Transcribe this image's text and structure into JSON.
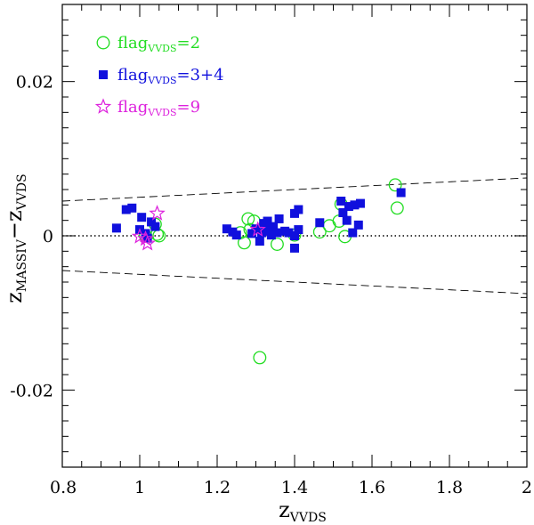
{
  "chart_data": {
    "type": "scatter",
    "title": "",
    "xlabel": {
      "base": "z",
      "sub": "VVDS"
    },
    "ylabel": {
      "base1": "z",
      "sub1": "MASSIV",
      "op": "−",
      "base2": "z",
      "sub2": "VVDS"
    },
    "xlim": [
      0.8,
      2.0
    ],
    "ylim": [
      -0.03,
      0.03
    ],
    "x_ticks": [
      0.8,
      1.0,
      1.2,
      1.4,
      1.6,
      1.8,
      2.0
    ],
    "x_tick_labels": [
      "0.8",
      "1",
      "1.2",
      "1.4",
      "1.6",
      "1.8",
      "2"
    ],
    "y_ticks": [
      -0.02,
      0.0,
      0.02
    ],
    "y_tick_labels": [
      "-0.02",
      "0",
      "0.02"
    ],
    "x_minor_step": 0.05,
    "y_minor_step": 0.002,
    "legend_position": "top-left",
    "grid": false,
    "reference_lines": [
      {
        "name": "zero",
        "style": "dotted",
        "x": [
          0.8,
          2.0
        ],
        "y": [
          0.0,
          0.0
        ]
      },
      {
        "name": "upper",
        "style": "dashed",
        "x": [
          0.8,
          2.0
        ],
        "y": [
          0.0045,
          0.0075
        ]
      },
      {
        "name": "lower",
        "style": "dashed",
        "x": [
          0.8,
          2.0
        ],
        "y": [
          -0.0045,
          -0.0075
        ]
      }
    ],
    "series": [
      {
        "name": {
          "base": "flag",
          "sub": "VVDS",
          "suffix": "=2"
        },
        "marker": "open-circle",
        "color": "#22dd22",
        "points": [
          [
            1.015,
            0.0
          ],
          [
            1.04,
            0.0015
          ],
          [
            1.045,
            0.0002
          ],
          [
            1.05,
            0.0
          ],
          [
            1.26,
            0.0004
          ],
          [
            1.27,
            -0.0009
          ],
          [
            1.28,
            0.0022
          ],
          [
            1.285,
            0.0008
          ],
          [
            1.295,
            0.0019
          ],
          [
            1.31,
            -0.0158
          ],
          [
            1.355,
            -0.0011
          ],
          [
            1.4,
            0.0001
          ],
          [
            1.465,
            0.0005
          ],
          [
            1.49,
            0.0013
          ],
          [
            1.515,
            0.0019
          ],
          [
            1.52,
            0.0041
          ],
          [
            1.53,
            -0.0001
          ],
          [
            1.66,
            0.0066
          ],
          [
            1.665,
            0.0036
          ]
        ]
      },
      {
        "name": {
          "base": "flag",
          "sub": "VVDS",
          "suffix": "=3+4"
        },
        "marker": "filled-square",
        "color": "#1010dd",
        "points": [
          [
            0.94,
            0.001
          ],
          [
            0.965,
            0.0034
          ],
          [
            0.98,
            0.0036
          ],
          [
            1.0,
            0.0008
          ],
          [
            1.005,
            0.0024
          ],
          [
            1.015,
            0.0003
          ],
          [
            1.02,
            -0.0003
          ],
          [
            1.03,
            0.0018
          ],
          [
            1.04,
            0.0012
          ],
          [
            1.225,
            0.0009
          ],
          [
            1.24,
            0.0005
          ],
          [
            1.25,
            0.0001
          ],
          [
            1.29,
            0.0003
          ],
          [
            1.3,
            0.0009
          ],
          [
            1.31,
            -0.0007
          ],
          [
            1.315,
            0.0004
          ],
          [
            1.32,
            0.0016
          ],
          [
            1.325,
            0.001
          ],
          [
            1.33,
            0.0019
          ],
          [
            1.335,
            0.0006
          ],
          [
            1.34,
            0.0001
          ],
          [
            1.345,
            0.0012
          ],
          [
            1.355,
            0.0004
          ],
          [
            1.36,
            0.0022
          ],
          [
            1.375,
            0.0006
          ],
          [
            1.385,
            0.0004
          ],
          [
            1.4,
            0.0029
          ],
          [
            1.41,
            0.0034
          ],
          [
            1.4,
            0.0
          ],
          [
            1.4,
            -0.0016
          ],
          [
            1.41,
            0.0008
          ],
          [
            1.465,
            0.0017
          ],
          [
            1.52,
            0.0045
          ],
          [
            1.525,
            0.003
          ],
          [
            1.535,
            0.002
          ],
          [
            1.54,
            0.0038
          ],
          [
            1.55,
            0.0004
          ],
          [
            1.555,
            0.004
          ],
          [
            1.565,
            0.0014
          ],
          [
            1.57,
            0.0042
          ],
          [
            1.675,
            0.0056
          ]
        ]
      },
      {
        "name": {
          "base": "flag",
          "sub": "VVDS",
          "suffix": "=9"
        },
        "marker": "open-star",
        "color": "#dd22dd",
        "points": [
          [
            1.0,
            -0.0001
          ],
          [
            1.015,
            -0.0004
          ],
          [
            1.02,
            -0.001
          ],
          [
            1.045,
            0.0029
          ],
          [
            1.305,
            0.0008
          ]
        ]
      }
    ]
  }
}
